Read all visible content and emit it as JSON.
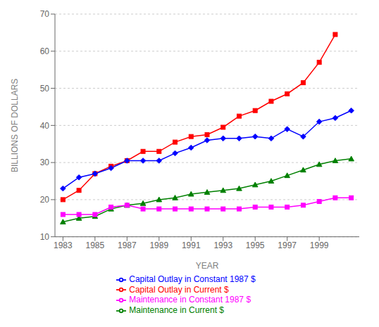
{
  "chart_data": {
    "type": "line",
    "xlabel": "YEAR",
    "ylabel": "BILLIONS OF DOLLARS",
    "x": [
      1983,
      1984,
      1985,
      1986,
      1987,
      1988,
      1989,
      1990,
      1991,
      1992,
      1993,
      1994,
      1995,
      1996,
      1997,
      1998,
      1999,
      2000,
      2001
    ],
    "series": [
      {
        "name": "Capital Outlay in Current $",
        "color": "#ff0000",
        "marker": "square",
        "values": [
          20.0,
          22.5,
          27.0,
          29.0,
          30.5,
          33.0,
          33.0,
          35.5,
          37.0,
          37.5,
          39.5,
          42.5,
          44.0,
          46.5,
          48.5,
          51.5,
          57.0,
          64.5,
          null
        ]
      },
      {
        "name": "Capital Outlay in Constant 1987 $",
        "color": "#0000ff",
        "marker": "diamond",
        "values": [
          23.0,
          26.0,
          27.0,
          28.5,
          30.5,
          30.5,
          30.5,
          32.5,
          34.0,
          36.0,
          36.5,
          36.5,
          37.0,
          36.5,
          39.0,
          37.0,
          41.0,
          42.0,
          44.0
        ]
      },
      {
        "name": "Maintenance in Current $",
        "color": "#008000",
        "marker": "triangle",
        "values": [
          14.0,
          15.0,
          15.5,
          17.5,
          18.5,
          19.0,
          20.0,
          20.5,
          21.5,
          22.0,
          22.5,
          23.0,
          24.0,
          25.0,
          26.5,
          28.0,
          29.5,
          30.5,
          31.0
        ]
      },
      {
        "name": "Maintenance in Constant 1987 $",
        "color": "#ff00ff",
        "marker": "square",
        "values": [
          16.0,
          16.0,
          16.0,
          18.0,
          18.5,
          17.5,
          17.5,
          17.5,
          17.5,
          17.5,
          17.5,
          17.5,
          18.0,
          18.0,
          18.0,
          18.5,
          19.5,
          20.5,
          20.5
        ]
      }
    ],
    "xlim": [
      1982.5,
      2001.5
    ],
    "ylim": [
      10,
      70
    ],
    "xticks": [
      1983,
      1985,
      1987,
      1989,
      1991,
      1993,
      1995,
      1997,
      1999
    ],
    "yticks": [
      10,
      20,
      30,
      40,
      50,
      60,
      70
    ],
    "grid": "y",
    "legend": "bottom"
  }
}
